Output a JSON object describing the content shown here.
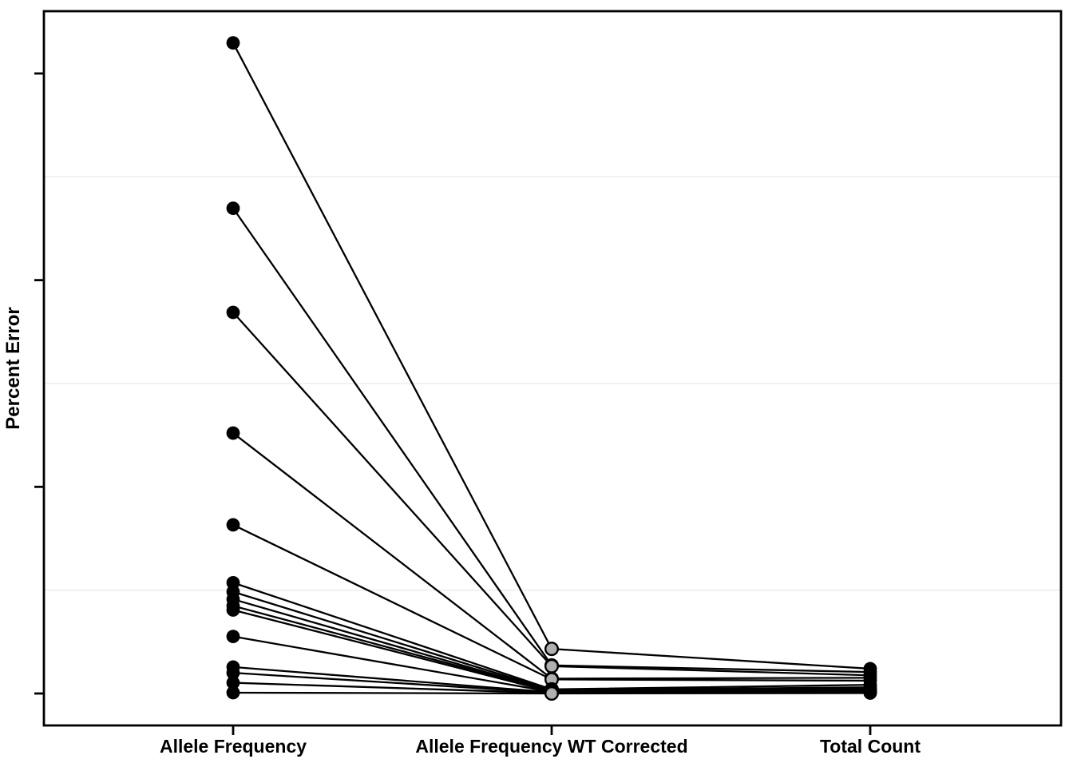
{
  "figure": {
    "background_color": "#ffffff",
    "panel_border_color": "#000000",
    "gridline_color": "#ededed",
    "line_color": "#000000",
    "text_color": "#000000",
    "middle_marker_fill": "#b0b0b0"
  },
  "chart_data": {
    "type": "line",
    "subtype": "slopegraph",
    "title": "",
    "xlabel": "",
    "ylabel": "Percent Error",
    "categories": [
      "Allele Frequency",
      "Allele Frequency WT Corrected",
      "Total Count"
    ],
    "legend": "none",
    "grid": "horizontal-minor-only",
    "y_axis": {
      "tick_values": [
        0,
        25,
        50,
        75
      ],
      "tick_labels_visible": false,
      "minor_gridlines_at": [
        12.5,
        37.5,
        62.5
      ],
      "ylim": [
        -3.9,
        82.5
      ],
      "units_note": "tick marks are unlabeled; numeric values estimated from equal tick spacing"
    },
    "marker_styles": [
      {
        "category": "Allele Frequency",
        "fill": "#000000",
        "outline": "#000000"
      },
      {
        "category": "Allele Frequency WT Corrected",
        "fill": "#b0b0b0",
        "outline": "#000000"
      },
      {
        "category": "Total Count",
        "fill": "#000000",
        "outline": "#000000"
      }
    ],
    "series": [
      {
        "values": [
          78.7,
          5.4,
          3.0
        ]
      },
      {
        "values": [
          58.7,
          3.4,
          2.6
        ]
      },
      {
        "values": [
          46.1,
          3.3,
          2.2
        ]
      },
      {
        "values": [
          31.5,
          1.8,
          1.9
        ]
      },
      {
        "values": [
          20.4,
          1.7,
          1.55
        ]
      },
      {
        "values": [
          13.4,
          0.5,
          1.05
        ]
      },
      {
        "values": [
          12.3,
          0.4,
          0.75
        ]
      },
      {
        "values": [
          11.4,
          0.3,
          0.55
        ]
      },
      {
        "values": [
          10.6,
          0.3,
          0.4
        ]
      },
      {
        "values": [
          10.1,
          0.2,
          0.3
        ]
      },
      {
        "values": [
          6.9,
          0.2,
          0.25
        ]
      },
      {
        "values": [
          3.2,
          0.15,
          0.2
        ]
      },
      {
        "values": [
          2.5,
          0.1,
          0.15
        ]
      },
      {
        "values": [
          1.3,
          0.05,
          0.1
        ]
      },
      {
        "values": [
          0.1,
          0.0,
          0.05
        ]
      }
    ]
  }
}
